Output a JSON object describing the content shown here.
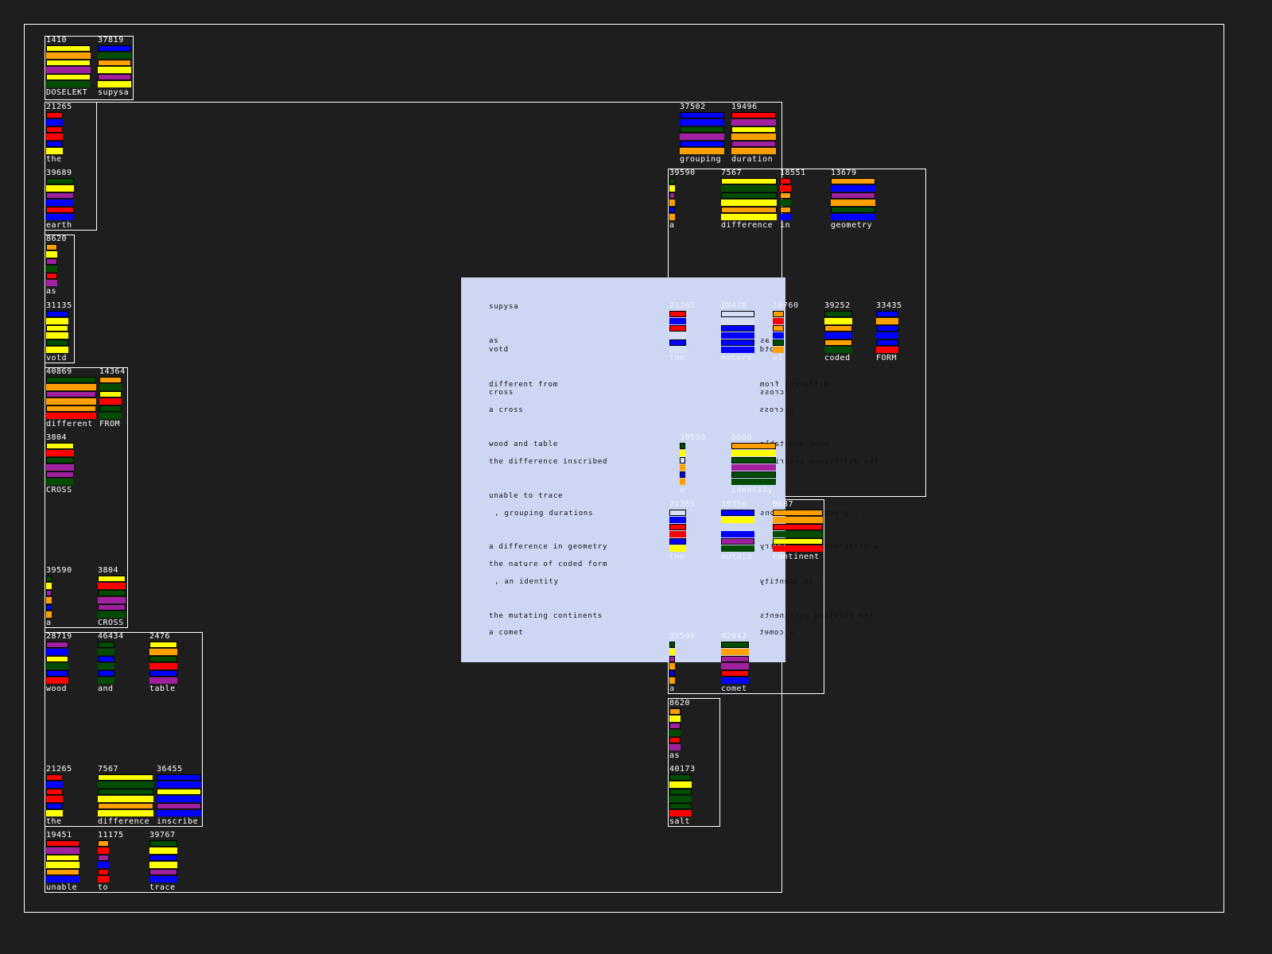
{
  "palette": {
    "R": "#ff0000",
    "B": "#0000ff",
    "G": "#004d00",
    "P": "#a020a0",
    "O": "#ffa000",
    "Y": "#ffff00",
    "W": "#d6def5"
  },
  "panel": {
    "background": "#cdd7f3",
    "lines": [
      "supysa",
      "as",
      "votd",
      "different from",
      "cross",
      "a cross",
      "wood and table",
      "the difference inscribed",
      "unable to trace",
      ", grouping durations",
      "a difference in geometry",
      "the nature of coded form",
      ", an identity",
      "the mutating continents",
      "a comet"
    ]
  },
  "blocks": [
    {
      "value": "1410",
      "label": "DOSELEKT",
      "bars": "YOYPYG"
    },
    {
      "value": "37819",
      "label": "supysa",
      "bars": "BGOYPY"
    },
    {
      "value": "21265",
      "label": "the",
      "bars": "RBRRBY"
    },
    {
      "value": "39689",
      "label": "earth",
      "bars": "GYPBRB"
    },
    {
      "value": "8620",
      "label": "as",
      "bars": "OYPGRP"
    },
    {
      "value": "31135",
      "label": "votd",
      "bars": "BYYYGY"
    },
    {
      "value": "40869",
      "label": "different",
      "bars": "GOPOOR"
    },
    {
      "value": "14364",
      "label": "FROM",
      "bars": "OGYRGG"
    },
    {
      "value": "3804",
      "label": "CROSS",
      "bars": "YRGPPG"
    },
    {
      "value": "39590",
      "label": "a",
      "bars": "GYPOBO"
    },
    {
      "value": "3804",
      "label": "CROSS",
      "bars": "YRGPPG"
    },
    {
      "value": "28719",
      "label": "wood",
      "bars": "PBYGBR"
    },
    {
      "value": "46434",
      "label": "and",
      "bars": "GGBGBG"
    },
    {
      "value": "2476",
      "label": "table",
      "bars": "YOGRBP"
    },
    {
      "value": "21265",
      "label": "the",
      "bars": "RBRRBY"
    },
    {
      "value": "7567",
      "label": "difference",
      "bars": "YGGYOY"
    },
    {
      "value": "36455",
      "label": "inscribe",
      "bars": "BBYBPB"
    },
    {
      "value": "19451",
      "label": "unable",
      "bars": "RPYYOB"
    },
    {
      "value": "11175",
      "label": "to",
      "bars": "ORPBRR"
    },
    {
      "value": "39767",
      "label": "trace",
      "bars": "GYBYPB"
    },
    {
      "value": "37502",
      "label": "grouping",
      "bars": "BBGPBO"
    },
    {
      "value": "19496",
      "label": "duration",
      "bars": "RPYOPO"
    },
    {
      "value": "39590",
      "label": "a",
      "bars": "GYPOBO"
    },
    {
      "value": "7567",
      "label": "difference",
      "bars": "YGGYOY"
    },
    {
      "value": "18551",
      "label": "in",
      "bars": "RROGOB"
    },
    {
      "value": "13679",
      "label": "geometry",
      "bars": "OBPOGB"
    },
    {
      "value": "21265",
      "label": "the",
      "bars": "RBRWBW"
    },
    {
      "value": "28478",
      "label": "nature",
      "bars": "WWBBBB"
    },
    {
      "value": "10760",
      "label": "of",
      "bars": "OROBGO"
    },
    {
      "value": "39252",
      "label": "coded",
      "bars": "GYOBOG"
    },
    {
      "value": "33435",
      "label": "FORM",
      "bars": "BOBBBR"
    },
    {
      "value": "39590",
      "label": "a",
      "bars": "GYWOBO"
    },
    {
      "value": "5600",
      "label": "identity",
      "bars": "OYGPGG"
    },
    {
      "value": "21265",
      "label": "the",
      "bars": "WBRRBY"
    },
    {
      "value": "39350",
      "label": "mutate",
      "bars": "BY BPG"
    },
    {
      "value": "9687",
      "label": "continent",
      "bars": "OORGYR"
    },
    {
      "value": "39590",
      "label": "a",
      "bars": "GYPOBO"
    },
    {
      "value": "42942",
      "label": "comet",
      "bars": "GOPPRB"
    },
    {
      "value": "8620",
      "label": "as",
      "bars": "OYPGRP"
    },
    {
      "value": "40173",
      "label": "salt",
      "bars": "GYGGGR"
    }
  ]
}
